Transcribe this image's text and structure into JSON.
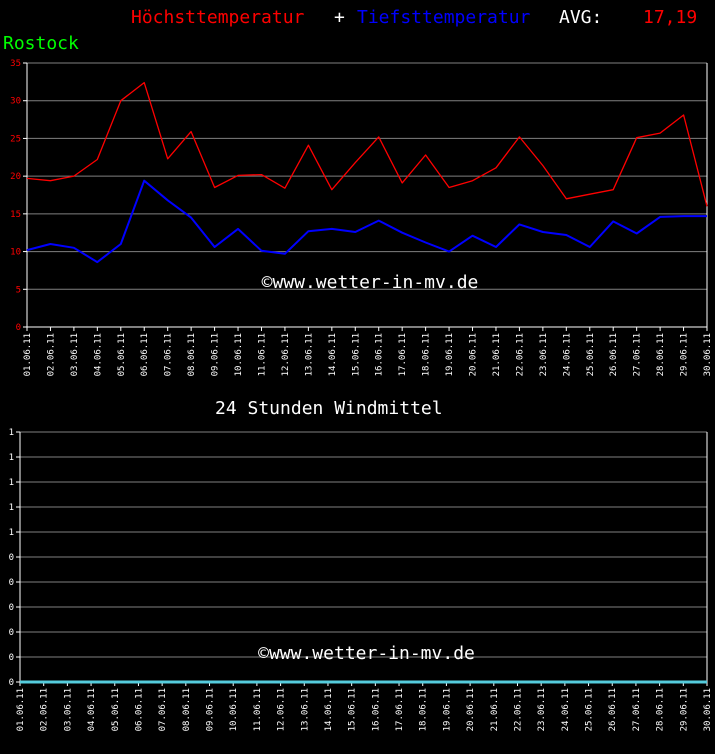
{
  "header": {
    "max_label": "Höchsttemperatur",
    "plus": "+",
    "min_label": "Tiefsttemperatur",
    "avg_label": "AVG:",
    "avg_value": "17,19",
    "station": "Rostock"
  },
  "colors": {
    "max": "#ff0000",
    "min": "#0000ff",
    "station": "#00ff00",
    "wind": "#55ccdd",
    "grid": "#808080",
    "text": "#ffffff"
  },
  "chart_data": [
    {
      "type": "line",
      "title": "",
      "categories": [
        "01.06.11",
        "02.06.11",
        "03.06.11",
        "04.06.11",
        "05.06.11",
        "06.06.11",
        "07.06.11",
        "08.06.11",
        "09.06.11",
        "10.06.11",
        "11.06.11",
        "12.06.11",
        "13.06.11",
        "14.06.11",
        "15.06.11",
        "16.06.11",
        "17.06.11",
        "18.06.11",
        "19.06.11",
        "20.06.11",
        "21.06.11",
        "22.06.11",
        "23.06.11",
        "24.06.11",
        "25.06.11",
        "26.06.11",
        "27.06.11",
        "28.06.11",
        "29.06.11",
        "30.06.11"
      ],
      "series": [
        {
          "name": "Höchsttemperatur",
          "values": [
            19.7,
            19.4,
            20.0,
            22.2,
            30.0,
            32.4,
            22.3,
            25.9,
            18.5,
            20.1,
            20.2,
            18.4,
            24.1,
            18.2,
            21.8,
            25.2,
            19.1,
            22.8,
            18.5,
            19.4,
            21.1,
            25.2,
            21.4,
            17.0,
            17.6,
            18.2,
            25.1,
            25.7,
            28.1,
            16.0
          ]
        },
        {
          "name": "Tiefsttemperatur",
          "values": [
            10.2,
            11.0,
            10.5,
            8.6,
            11.0,
            19.4,
            16.8,
            14.5,
            10.6,
            13.0,
            10.1,
            9.7,
            12.7,
            13.0,
            12.6,
            14.1,
            12.5,
            11.2,
            10.0,
            12.1,
            10.6,
            13.6,
            12.6,
            12.2,
            10.6,
            14.0,
            12.4,
            14.6,
            14.7,
            14.7
          ]
        }
      ],
      "yticks": [
        "0",
        "5",
        "10",
        "15",
        "20",
        "25",
        "30",
        "35"
      ],
      "ylim": [
        0,
        35
      ],
      "watermark": "©www.wetter-in-mv.de",
      "grid": true
    },
    {
      "type": "line",
      "title": "24 Stunden Windmittel",
      "categories": [
        "01.06.11",
        "02.06.11",
        "03.06.11",
        "04.06.11",
        "05.06.11",
        "06.06.11",
        "07.06.11",
        "08.06.11",
        "09.06.11",
        "10.06.11",
        "11.06.11",
        "12.06.11",
        "13.06.11",
        "14.06.11",
        "15.06.11",
        "16.06.11",
        "17.06.11",
        "18.06.11",
        "19.06.11",
        "20.06.11",
        "21.06.11",
        "22.06.11",
        "23.06.11",
        "24.06.11",
        "25.06.11",
        "26.06.11",
        "27.06.11",
        "28.06.11",
        "29.06.11",
        "30.06.11"
      ],
      "series": [
        {
          "values": [
            0,
            0,
            0,
            0,
            0,
            0,
            0,
            0,
            0,
            0,
            0,
            0,
            0,
            0,
            0,
            0,
            0,
            0,
            0,
            0,
            0,
            0,
            0,
            0,
            0,
            0,
            0,
            0,
            0,
            0
          ]
        }
      ],
      "yticks": [
        "0",
        "0",
        "0",
        "0",
        "0",
        "0",
        "1",
        "1",
        "1",
        "1",
        "1"
      ],
      "ylim": [
        0,
        1
      ],
      "watermark": "©www.wetter-in-mv.de",
      "grid": true
    }
  ]
}
